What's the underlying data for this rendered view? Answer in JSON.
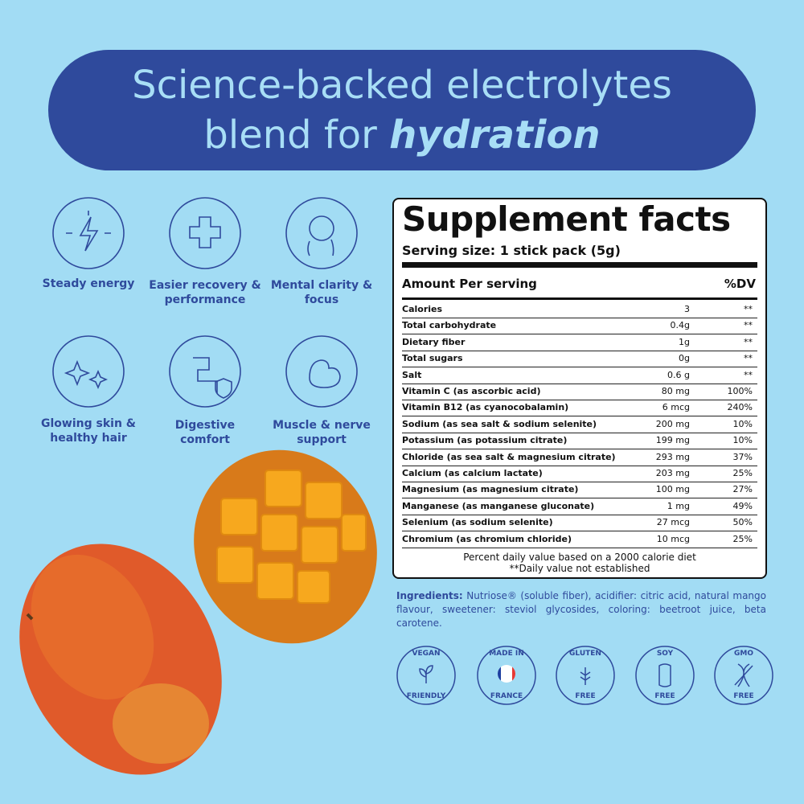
{
  "headline": {
    "line1": "Science-backed electrolytes",
    "line2": "blend for",
    "emphasis": "hydration"
  },
  "benefits": [
    "Steady energy",
    "Easier recovery & performance",
    "Mental clarity & focus",
    "Glowing skin & healthy hair",
    "Digestive comfort",
    "Muscle & nerve support"
  ],
  "facts": {
    "title": "Supplement facts",
    "serving": "Serving size: 1 stick pack (5g)",
    "amount_header": "Amount Per serving",
    "dv_header": "%DV",
    "rows": [
      [
        "Calories",
        "3",
        "**"
      ],
      [
        "Total carbohydrate",
        "0.4g",
        "**"
      ],
      [
        "Dietary fiber",
        "1g",
        "**"
      ],
      [
        "Total sugars",
        "0g",
        "**"
      ],
      [
        "Salt",
        "0.6 g",
        "**"
      ],
      [
        "Vitamin C (as ascorbic acid)",
        "80 mg",
        "100%"
      ],
      [
        "Vitamin B12 (as cyanocobalamin)",
        "6 mcg",
        "240%"
      ],
      [
        "Sodium (as sea salt & sodium selenite)",
        "200 mg",
        "10%"
      ],
      [
        "Potassium (as potassium citrate)",
        "199 mg",
        "10%"
      ],
      [
        "Chloride (as sea salt & magnesium citrate)",
        "293 mg",
        "37%"
      ],
      [
        "Calcium (as calcium lactate)",
        "203 mg",
        "25%"
      ],
      [
        "Magnesium (as magnesium citrate)",
        "100 mg",
        "27%"
      ],
      [
        "Manganese (as manganese gluconate)",
        "1 mg",
        "49%"
      ],
      [
        "Selenium (as sodium selenite)",
        "27 mcg",
        "50%"
      ],
      [
        "Chromium (as chromium chloride)",
        "10 mcg",
        "25%"
      ]
    ],
    "footnote1": "Percent daily value based on a 2000 calorie diet",
    "footnote2": "**Daily value not established"
  },
  "ingredients": {
    "label": "Ingredients:",
    "text": "Nutriose® (soluble fiber), acidifier: citric acid, natural mango flavour, sweetener: steviol glycosides, coloring: beetroot juice, beta carotene."
  },
  "badges": [
    [
      "VEGAN",
      "FRIENDLY"
    ],
    [
      "MADE IN",
      "FRANCE"
    ],
    [
      "GLUTEN",
      "FREE"
    ],
    [
      "SOY",
      "FREE"
    ],
    [
      "GMO",
      "FREE"
    ]
  ]
}
